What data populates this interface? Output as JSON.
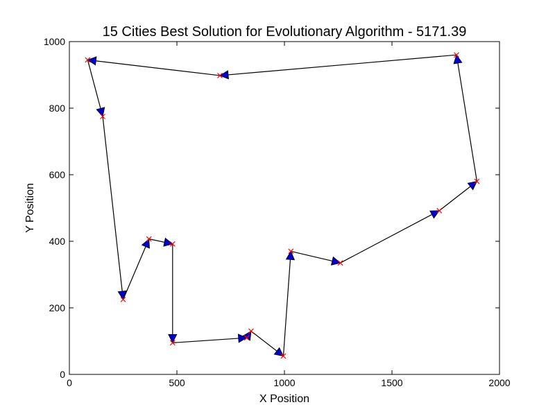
{
  "chart_data": {
    "type": "line",
    "title": "15 Cities Best Solution for Evolutionary Algorithm - 5171.39",
    "xlabel": "X Position",
    "ylabel": "Y Position",
    "xlim": [
      0,
      2000
    ],
    "ylim": [
      0,
      1000
    ],
    "xticks": [
      "0",
      "500",
      "1000",
      "1500",
      "2000"
    ],
    "xtick_values": [
      0,
      500,
      1000,
      1500,
      2000
    ],
    "yticks": [
      "0",
      "200",
      "400",
      "600",
      "800",
      "1000"
    ],
    "ytick_values": [
      0,
      200,
      400,
      600,
      800,
      1000
    ],
    "grid": false,
    "legend": "none",
    "colors": {
      "path": "#000000",
      "arrow": "#0000cc",
      "city_marker": "#ff0000"
    },
    "route": [
      {
        "x": 1800,
        "y": 960
      },
      {
        "x": 700,
        "y": 898
      },
      {
        "x": 85,
        "y": 945
      },
      {
        "x": 155,
        "y": 775
      },
      {
        "x": 250,
        "y": 225
      },
      {
        "x": 370,
        "y": 407
      },
      {
        "x": 480,
        "y": 392
      },
      {
        "x": 480,
        "y": 95
      },
      {
        "x": 825,
        "y": 110
      },
      {
        "x": 845,
        "y": 130
      },
      {
        "x": 995,
        "y": 55
      },
      {
        "x": 1030,
        "y": 370
      },
      {
        "x": 1260,
        "y": 335
      },
      {
        "x": 1720,
        "y": 492
      },
      {
        "x": 1895,
        "y": 580
      }
    ]
  }
}
